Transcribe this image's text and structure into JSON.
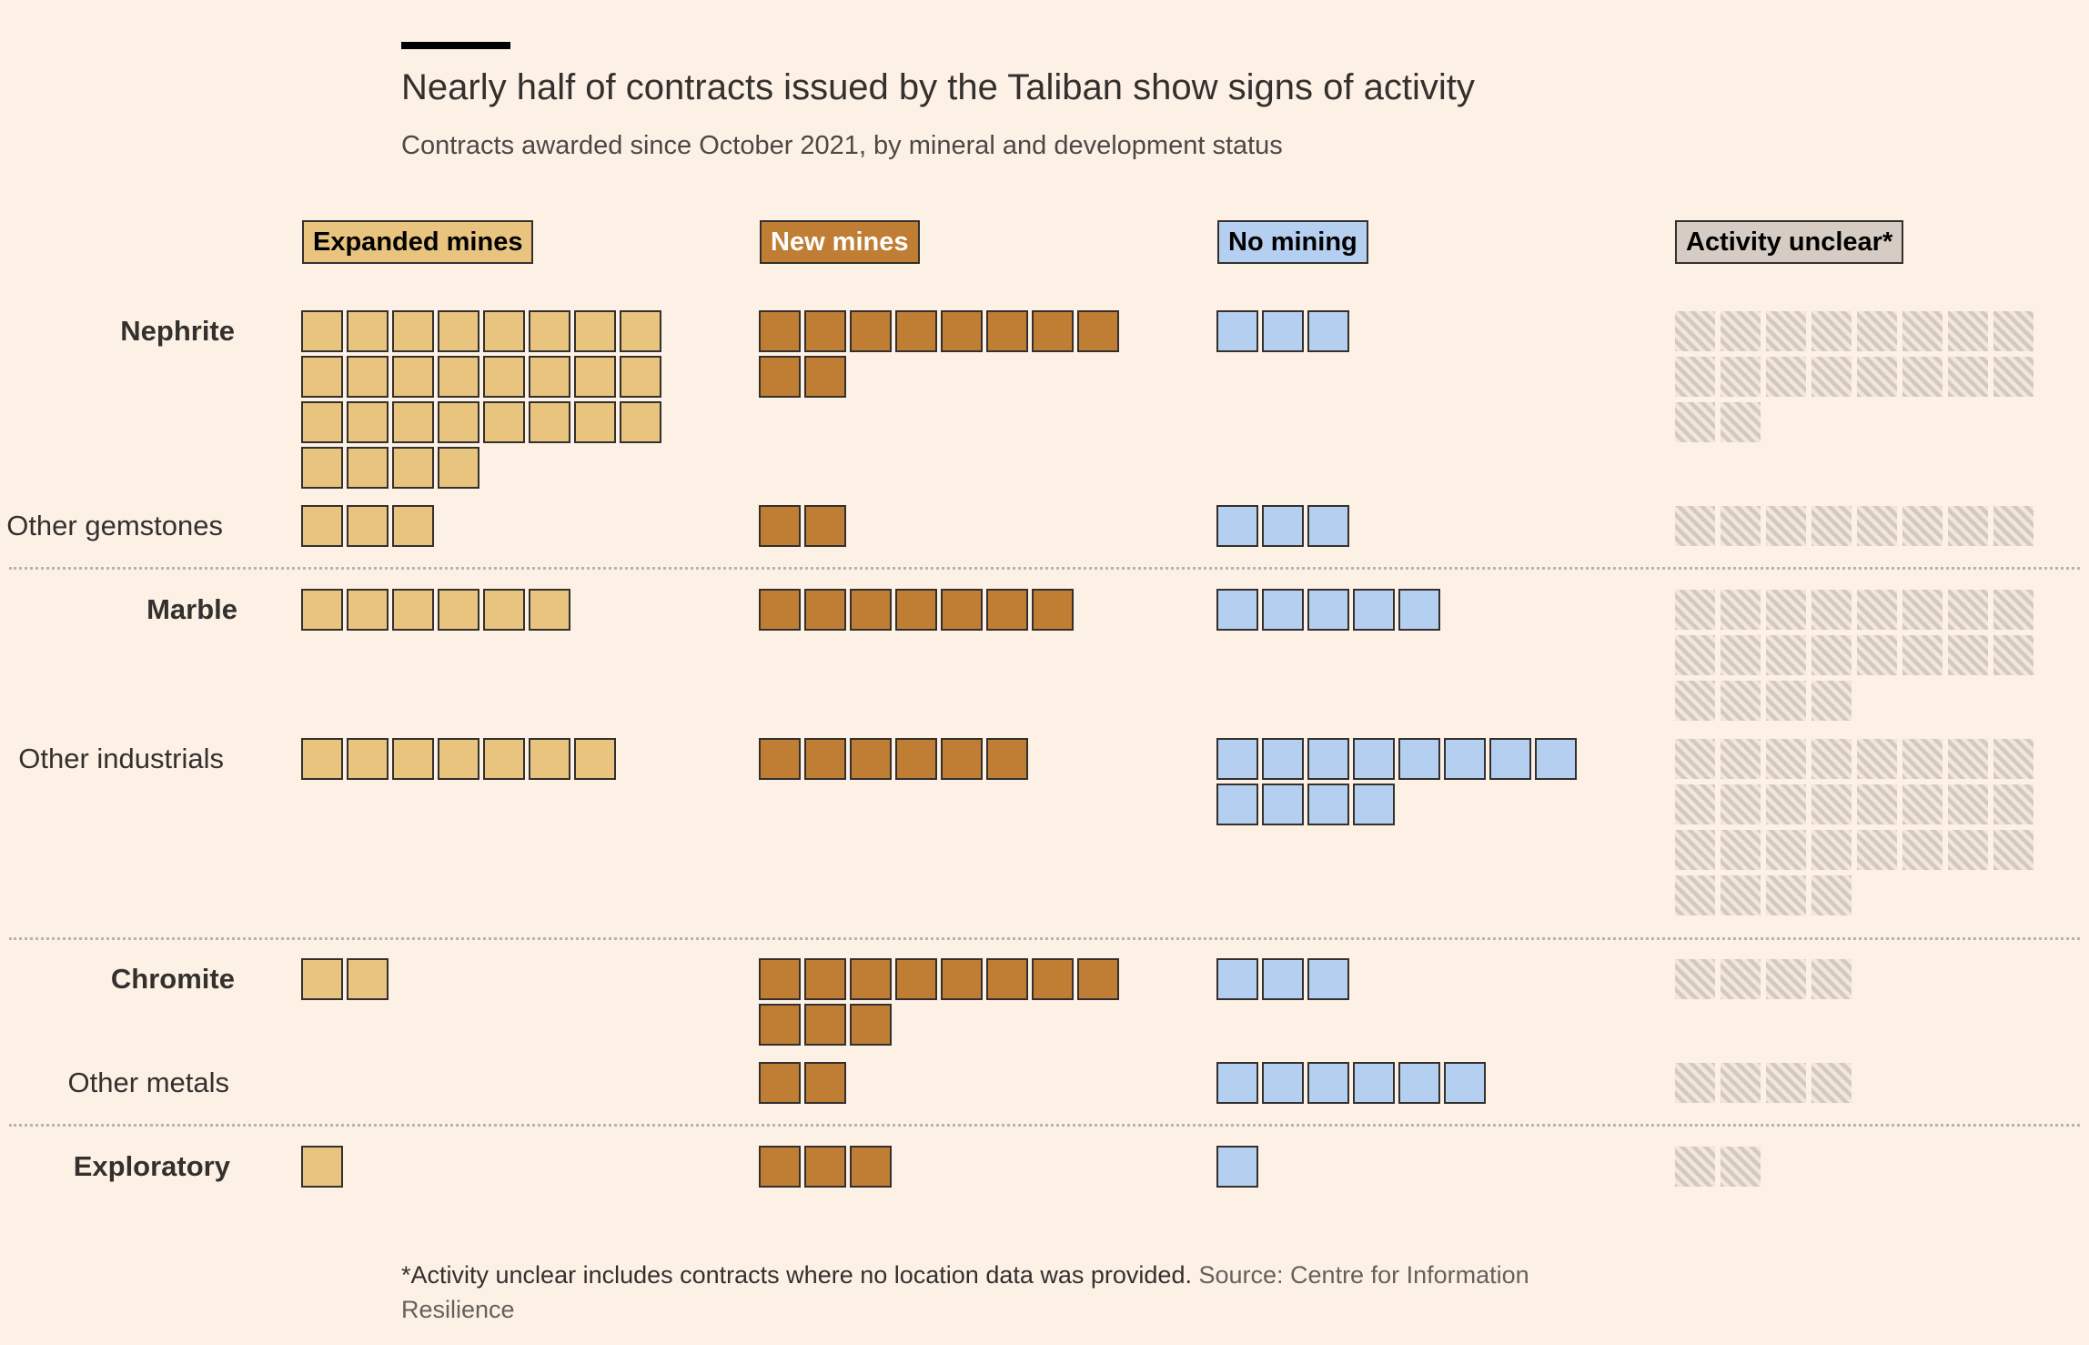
{
  "title": "Nearly half of contracts issued by the Taliban show signs of activity",
  "subtitle": "Contracts awarded since October 2021, by mineral and development status",
  "footnote": "*Activity unclear includes contracts where no location data was provided.",
  "source": "Source: Centre for Information Resilience",
  "chart_data": {
    "type": "waffle",
    "title": "Nearly half of contracts issued by the Taliban show signs of activity",
    "subtitle": "Contracts awarded since October 2021, by mineral and development status",
    "units_per_square": 1,
    "squares_per_row": 8,
    "categories": [
      "Nephrite",
      "Other gemstones",
      "Marble",
      "Other industrials",
      "Chromite",
      "Other metals",
      "Exploratory"
    ],
    "bold_categories": [
      "Nephrite",
      "Marble",
      "Chromite",
      "Exploratory"
    ],
    "series": [
      {
        "name": "Expanded mines",
        "color": "#e8c47f",
        "text_color": "#000000",
        "values": [
          28,
          3,
          6,
          7,
          2,
          0,
          1
        ]
      },
      {
        "name": "New mines",
        "color": "#c07d34",
        "text_color": "#ffffff",
        "values": [
          10,
          2,
          7,
          6,
          11,
          2,
          3
        ]
      },
      {
        "name": "No mining",
        "color": "#b5cff0",
        "text_color": "#000000",
        "values": [
          3,
          3,
          5,
          12,
          3,
          6,
          1
        ]
      },
      {
        "name": "Activity unclear*",
        "color": "#d6ccc3",
        "text_color": "#000000",
        "pattern": "hatched",
        "values": [
          18,
          8,
          20,
          28,
          4,
          4,
          2
        ]
      }
    ]
  }
}
